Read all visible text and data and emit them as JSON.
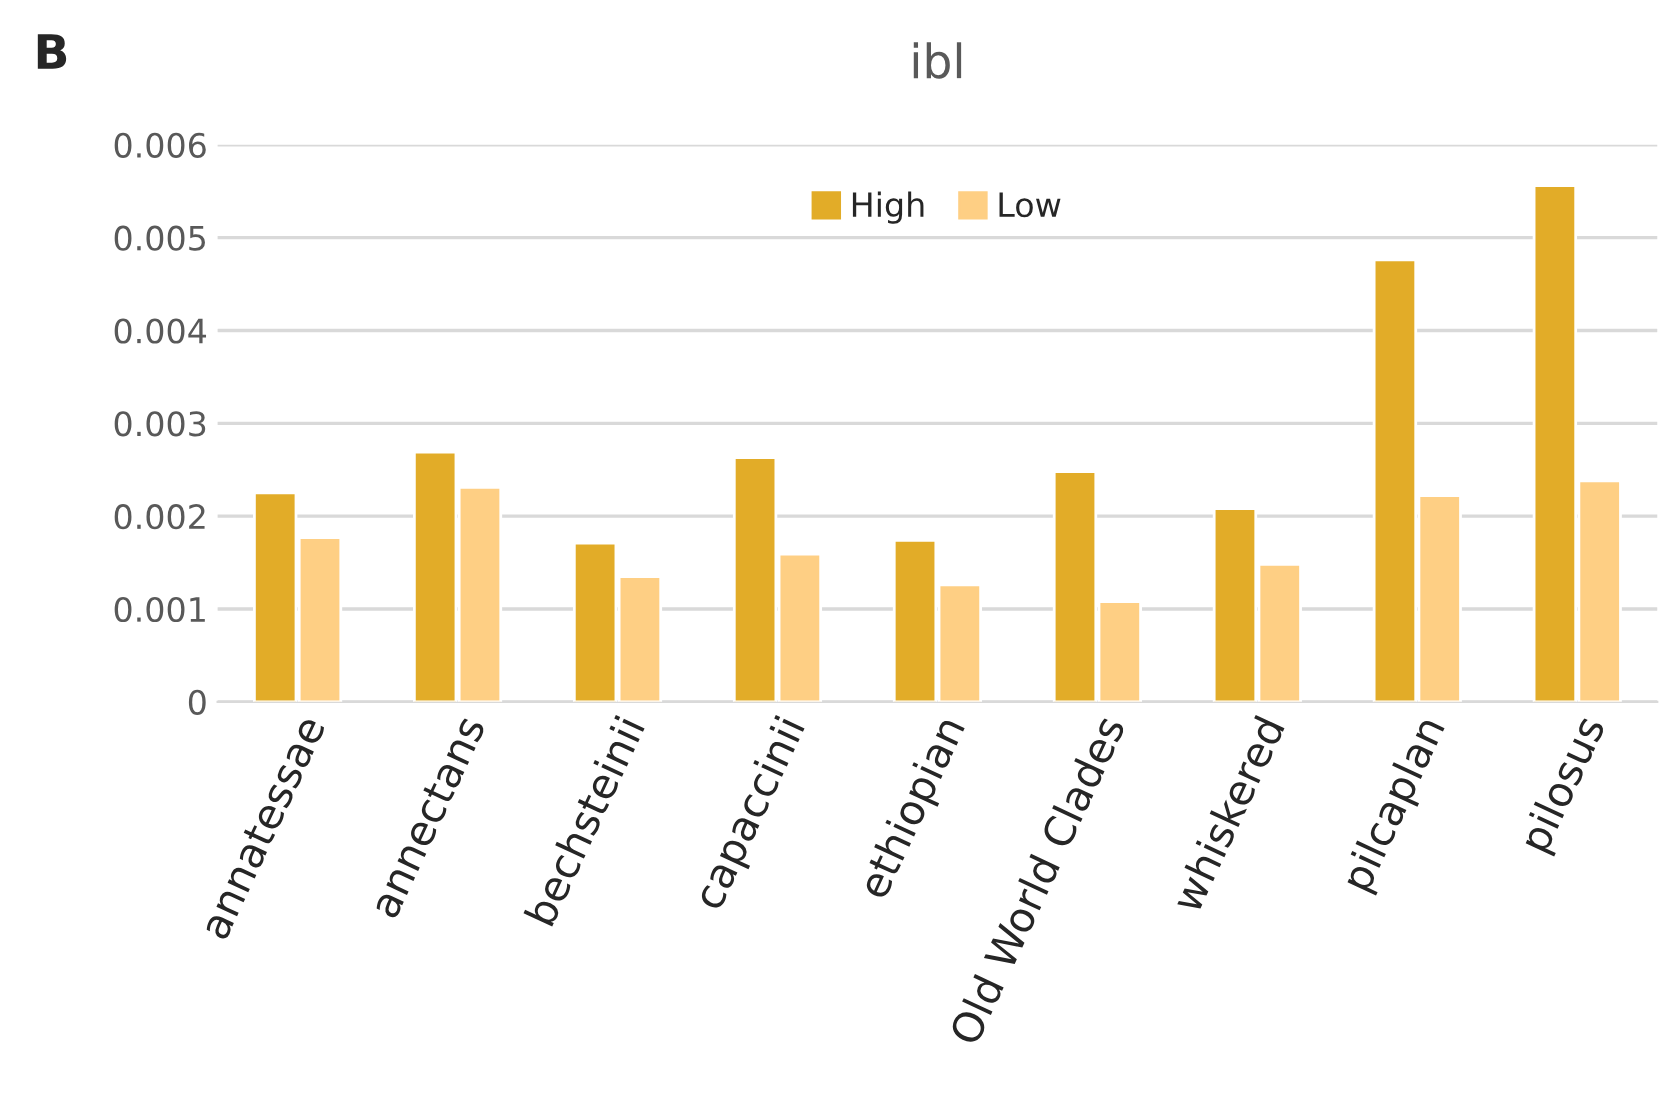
{
  "chart_data": {
    "type": "bar",
    "title": "ibl",
    "annotations": [
      "B"
    ],
    "categories": [
      "annatessae",
      "annectans",
      "bechsteinii",
      "capaccinii",
      "ethiopian",
      "Old World Clades",
      "whiskered",
      "pilcaplan",
      "pilosus"
    ],
    "series": [
      {
        "name": "High",
        "color": "#e2ac28",
        "values": [
          0.00225,
          0.00269,
          0.00171,
          0.00263,
          0.00174,
          0.00248,
          0.00208,
          0.00476,
          0.00556
        ]
      },
      {
        "name": "Low",
        "color": "#fecf84",
        "values": [
          0.00177,
          0.00231,
          0.00135,
          0.00159,
          0.00126,
          0.00108,
          0.00148,
          0.00222,
          0.00238
        ]
      }
    ],
    "ylim": [
      0,
      0.006
    ],
    "yticks": [
      {
        "value": 0,
        "label": "0"
      },
      0.001,
      0.002,
      0.003,
      0.004,
      0.005,
      0.006
    ],
    "grid": "y",
    "legend": "top"
  }
}
